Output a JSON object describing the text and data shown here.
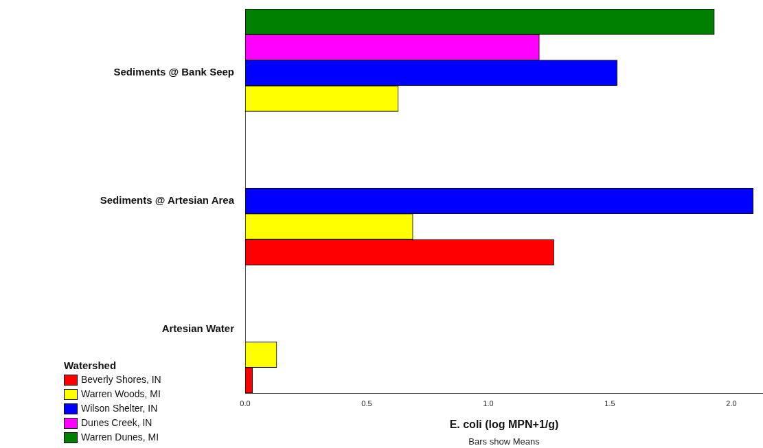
{
  "chart_data": {
    "type": "bar",
    "orientation": "horizontal",
    "xlabel": "E. coli (log MPN+1/g)",
    "legend_title": "Watershed",
    "legend": "bottom left",
    "grid": false,
    "categories": [
      "Sediments @ Bank Seep",
      "Sediments @ Artesian Area",
      "Artesian Water"
    ],
    "series": [
      {
        "name": "Beverly Shores, IN",
        "color": "#ff0000",
        "values": [
          null,
          1.27,
          0.03
        ]
      },
      {
        "name": "Warren Woods, MI",
        "color": "#ffff00",
        "values": [
          0.63,
          0.69,
          0.13
        ]
      },
      {
        "name": "Wilson Shelter, IN",
        "color": "#0000ff",
        "values": [
          1.53,
          2.09,
          null
        ]
      },
      {
        "name": "Dunes Creek, IN",
        "color": "#ff00ff",
        "values": [
          1.21,
          null,
          null
        ]
      },
      {
        "name": "Warren Dunes, MI",
        "color": "#008000",
        "values": [
          1.93,
          null,
          null
        ]
      }
    ],
    "xlim": [
      0,
      2.13
    ],
    "xticks": [
      {
        "value": 0,
        "label": "0.0"
      },
      {
        "value": 0.5,
        "label": "0.5"
      },
      {
        "value": 1,
        "label": "1.0"
      },
      {
        "value": 1.5,
        "label": "1.5"
      },
      {
        "value": 2,
        "label": "2.0"
      }
    ],
    "annotations": [
      "Bars show Means"
    ]
  }
}
